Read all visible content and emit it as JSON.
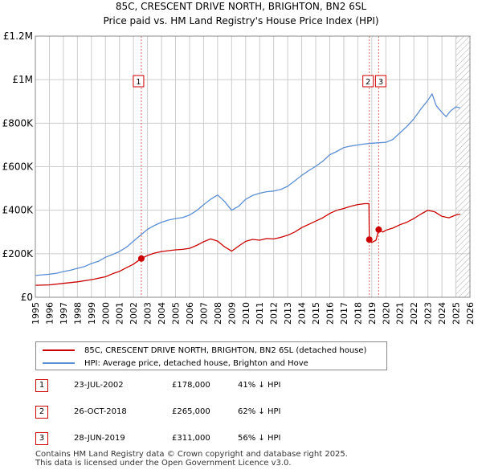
{
  "title": "85C, CRESCENT DRIVE NORTH, BRIGHTON, BN2 6SL",
  "subtitle": "Price paid vs. HM Land Registry's House Price Index (HPI)",
  "colors": {
    "property": "#cc0000",
    "hpi": "#5b8fd4",
    "grid": "#cccccc",
    "hatch": "#aaaaaa"
  },
  "chart_data": {
    "type": "line",
    "title": "85C, CRESCENT DRIVE NORTH, BRIGHTON, BN2 6SL",
    "xlabel": "",
    "ylabel": "",
    "xlim": [
      1995,
      2026
    ],
    "ylim": [
      0,
      1200000
    ],
    "x_ticks": [
      1995,
      1996,
      1997,
      1998,
      1999,
      2000,
      2001,
      2002,
      2003,
      2004,
      2005,
      2006,
      2007,
      2008,
      2009,
      2010,
      2011,
      2012,
      2013,
      2014,
      2015,
      2016,
      2017,
      2018,
      2019,
      2020,
      2021,
      2022,
      2023,
      2024,
      2025,
      2026
    ],
    "y_ticks": [
      0,
      200000,
      400000,
      600000,
      800000,
      1000000,
      1200000
    ],
    "y_tick_labels": [
      "£0",
      "£200K",
      "£400K",
      "£600K",
      "£800K",
      "£1M",
      "£1.2M"
    ],
    "grid": true,
    "series": [
      {
        "name": "85C, CRESCENT DRIVE NORTH, BRIGHTON, BN2 6SL (detached house)",
        "x": [
          1995.0,
          1996.0,
          1997.0,
          1998.0,
          1999.0,
          2000.0,
          2000.5,
          2001.0,
          2001.5,
          2002.0,
          2002.56,
          2003.0,
          2003.5,
          2004.0,
          2004.5,
          2005.0,
          2005.5,
          2006.0,
          2006.5,
          2007.0,
          2007.5,
          2008.0,
          2008.5,
          2009.0,
          2009.5,
          2010.0,
          2010.5,
          2011.0,
          2011.5,
          2012.0,
          2012.5,
          2013.0,
          2013.5,
          2014.0,
          2014.5,
          2015.0,
          2015.5,
          2016.0,
          2016.5,
          2017.0,
          2017.5,
          2018.0,
          2018.5,
          2018.8,
          2018.82,
          2019.0,
          2019.3,
          2019.49,
          2019.8,
          2020.0,
          2020.5,
          2021.0,
          2021.5,
          2022.0,
          2022.5,
          2023.0,
          2023.5,
          2024.0,
          2024.5,
          2025.0,
          2025.3
        ],
        "values": [
          55000,
          57000,
          64000,
          71000,
          81000,
          94000,
          108000,
          119000,
          136000,
          152000,
          178000,
          192000,
          203000,
          210000,
          214000,
          218000,
          220000,
          225000,
          238000,
          255000,
          268000,
          258000,
          232000,
          212000,
          235000,
          257000,
          266000,
          262000,
          270000,
          268000,
          275000,
          285000,
          300000,
          320000,
          335000,
          350000,
          365000,
          385000,
          400000,
          408000,
          418000,
          426000,
          430000,
          430000,
          265000,
          252000,
          262000,
          311000,
          300000,
          308000,
          318000,
          333000,
          345000,
          362000,
          382000,
          400000,
          392000,
          372000,
          365000,
          378000,
          382000
        ]
      },
      {
        "name": "HPI: Average price, detached house, Brighton and Hove",
        "x": [
          1995.0,
          1995.5,
          1996.0,
          1996.5,
          1997.0,
          1997.5,
          1998.0,
          1998.5,
          1999.0,
          1999.5,
          2000.0,
          2000.5,
          2001.0,
          2001.5,
          2002.0,
          2002.5,
          2003.0,
          2003.5,
          2004.0,
          2004.5,
          2005.0,
          2005.5,
          2006.0,
          2006.5,
          2007.0,
          2007.5,
          2008.0,
          2008.5,
          2009.0,
          2009.5,
          2010.0,
          2010.5,
          2011.0,
          2011.5,
          2012.0,
          2012.5,
          2013.0,
          2013.5,
          2014.0,
          2014.5,
          2015.0,
          2015.5,
          2016.0,
          2016.5,
          2017.0,
          2017.5,
          2018.0,
          2018.5,
          2019.0,
          2019.5,
          2020.0,
          2020.5,
          2021.0,
          2021.5,
          2022.0,
          2022.5,
          2023.0,
          2023.3,
          2023.6,
          2024.0,
          2024.3,
          2024.6,
          2025.0,
          2025.3
        ],
        "values": [
          100000,
          103000,
          106000,
          110000,
          118000,
          124000,
          133000,
          141000,
          155000,
          165000,
          184000,
          196000,
          210000,
          230000,
          258000,
          285000,
          312000,
          330000,
          345000,
          355000,
          362000,
          366000,
          378000,
          398000,
          425000,
          450000,
          470000,
          440000,
          400000,
          418000,
          450000,
          468000,
          478000,
          485000,
          488000,
          495000,
          510000,
          535000,
          560000,
          582000,
          602000,
          625000,
          655000,
          670000,
          688000,
          695000,
          700000,
          705000,
          708000,
          710000,
          712000,
          725000,
          755000,
          785000,
          820000,
          865000,
          905000,
          935000,
          880000,
          850000,
          830000,
          855000,
          875000,
          870000
        ]
      }
    ],
    "sales": [
      {
        "label": "1",
        "x": 2002.56,
        "value": 178000
      },
      {
        "label": "2",
        "x": 2018.82,
        "value": 265000
      },
      {
        "label": "3",
        "x": 2019.49,
        "value": 311000
      }
    ],
    "future_hatch_from": 2025.0
  },
  "legend": {
    "property_label": "85C, CRESCENT DRIVE NORTH, BRIGHTON, BN2 6SL (detached house)",
    "hpi_label": "HPI: Average price, detached house, Brighton and Hove"
  },
  "sales_table": [
    {
      "num": "1",
      "date": "23-JUL-2002",
      "price": "£178,000",
      "hpi": "41% ↓ HPI"
    },
    {
      "num": "2",
      "date": "26-OCT-2018",
      "price": "£265,000",
      "hpi": "62% ↓ HPI"
    },
    {
      "num": "3",
      "date": "28-JUN-2019",
      "price": "£311,000",
      "hpi": "56% ↓ HPI"
    }
  ],
  "footer": {
    "line1": "Contains HM Land Registry data © Crown copyright and database right 2025.",
    "line2": "This data is licensed under the Open Government Licence v3.0."
  }
}
